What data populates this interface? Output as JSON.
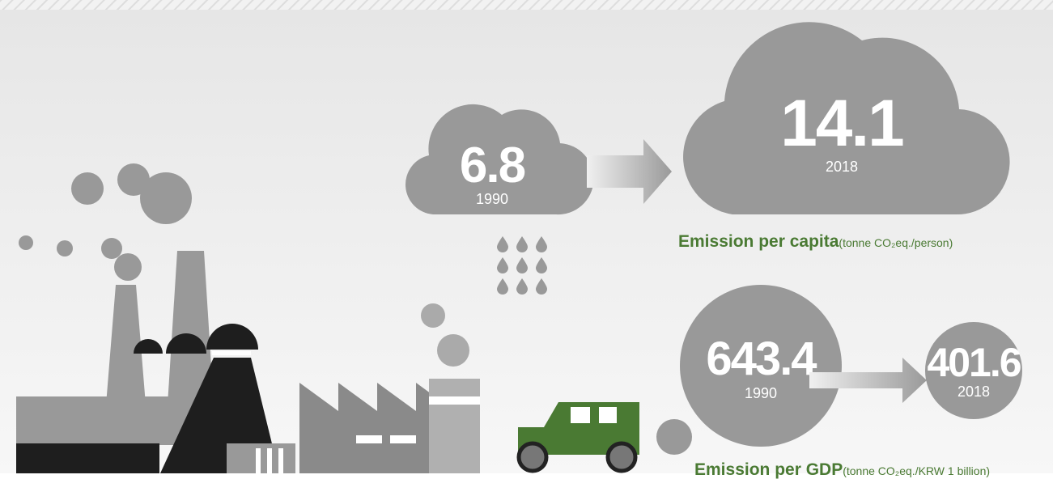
{
  "per_capita": {
    "from": {
      "value": "6.8",
      "year": "1990"
    },
    "to": {
      "value": "14.1",
      "year": "2018"
    },
    "label": "Emission per capita",
    "unit": "(tonne CO₂eq./person)"
  },
  "per_gdp": {
    "from": {
      "value": "643.4",
      "year": "1990"
    },
    "to": {
      "value": "401.6",
      "year": "2018"
    },
    "label": "Emission per GDP",
    "unit": "(tonne CO₂eq./KRW 1 billion)"
  }
}
